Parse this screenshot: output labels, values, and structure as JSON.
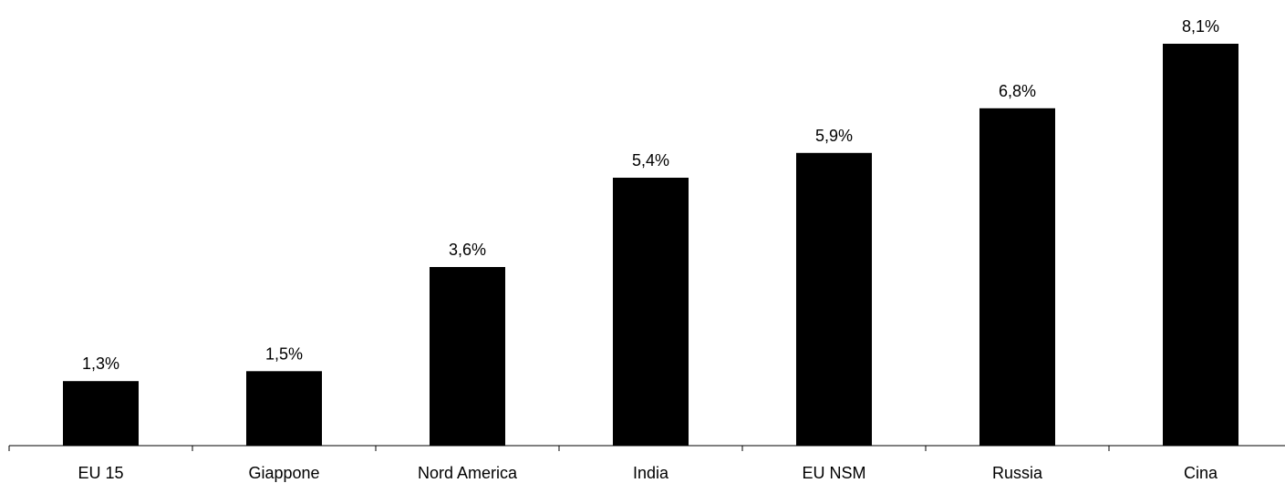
{
  "chart_data": {
    "type": "bar",
    "categories": [
      "EU 15",
      "Giappone",
      "Nord America",
      "India",
      "EU NSM",
      "Russia",
      "Cina"
    ],
    "values": [
      1.3,
      1.5,
      3.6,
      5.4,
      5.9,
      6.8,
      8.1
    ],
    "value_labels": [
      "1,3%",
      "1,5%",
      "3,6%",
      "5,4%",
      "5,9%",
      "6,8%",
      "8,1%"
    ],
    "ylim": [
      0,
      8.1
    ],
    "grid": false,
    "legend": "none",
    "bar_color": "#000000"
  }
}
